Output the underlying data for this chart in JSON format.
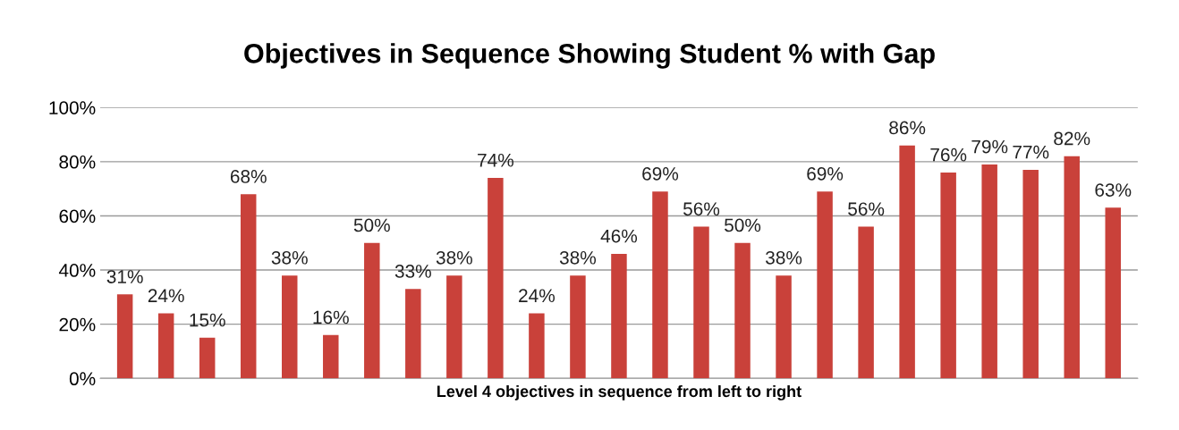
{
  "chart_data": {
    "type": "bar",
    "title": "Objectives in Sequence Showing Student % with Gap",
    "xlabel": "Level 4 objectives in sequence from left to right",
    "categories": [
      null,
      null,
      null,
      null,
      null,
      null,
      null,
      null,
      null,
      null,
      null,
      null,
      null,
      null,
      null,
      null,
      null,
      null,
      null,
      null,
      null,
      null,
      null,
      null,
      null
    ],
    "values": [
      31,
      24,
      15,
      68,
      38,
      16,
      50,
      33,
      38,
      74,
      24,
      38,
      46,
      69,
      56,
      50,
      38,
      69,
      56,
      86,
      76,
      79,
      77,
      82,
      63
    ],
    "value_labels": [
      "31%",
      "24%",
      "15%",
      "68%",
      "38%",
      "16%",
      "50%",
      "33%",
      "38%",
      "74%",
      "24%",
      "38%",
      "46%",
      "69%",
      "56%",
      "50%",
      "38%",
      "69%",
      "56%",
      "86%",
      "76%",
      "79%",
      "77%",
      "82%",
      "63%"
    ],
    "color": "#c9413a",
    "ylim": [
      0,
      100
    ],
    "yticks": [
      {
        "value": 0,
        "label": "0%"
      },
      {
        "value": 20,
        "label": "20%"
      },
      {
        "value": 40,
        "label": "40%"
      },
      {
        "value": 60,
        "label": "60%"
      },
      {
        "value": 80,
        "label": "80%"
      },
      {
        "value": 100,
        "label": "100%"
      }
    ],
    "grid": "y",
    "legend": false
  }
}
